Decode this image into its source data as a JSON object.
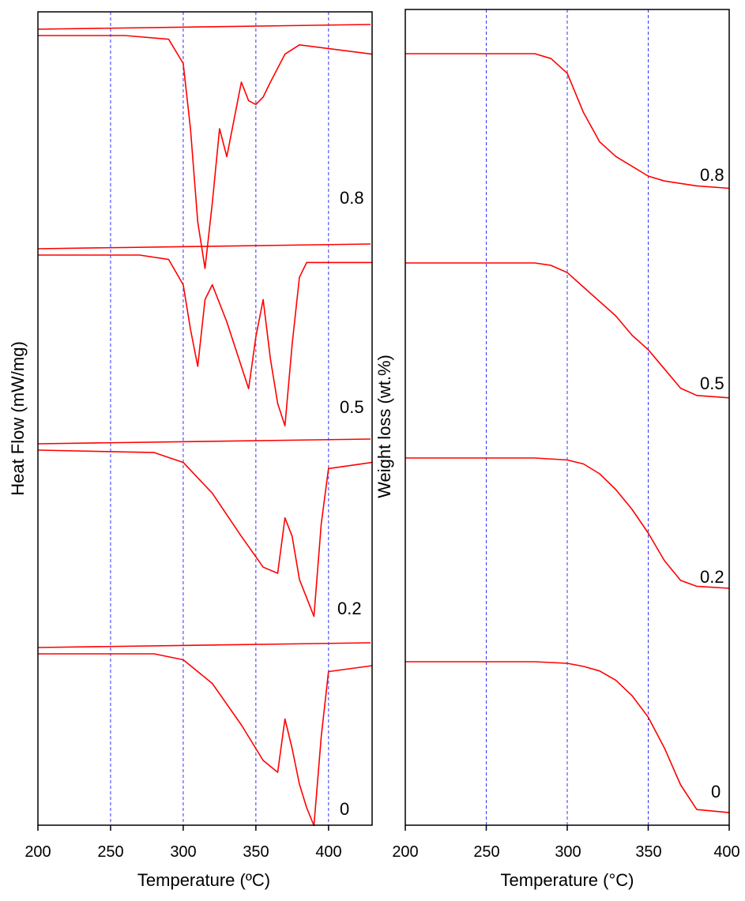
{
  "colors": {
    "curve": "#ff0000",
    "grid": "#3333ff",
    "axis": "#000000",
    "background": "#ffffff"
  },
  "chart_data": [
    {
      "type": "line",
      "title": "",
      "xlabel": "Temperature (ºC)",
      "ylabel": "Heat Flow (mW/mg)",
      "xlim": [
        200,
        430
      ],
      "xticks": [
        "200",
        "250",
        "300",
        "350",
        "400"
      ],
      "grid": {
        "vertical_at": [
          250,
          300,
          350,
          400
        ],
        "style": "dashed"
      },
      "ytick_labels": false,
      "series": [
        {
          "name": "0.8",
          "x": [
            200,
            260,
            290,
            300,
            305,
            310,
            315,
            320,
            325,
            330,
            335,
            340,
            345,
            350,
            355,
            360,
            370,
            380,
            430
          ],
          "y": [
            0,
            0,
            -0.02,
            -0.15,
            -0.5,
            -1.0,
            -1.25,
            -0.9,
            -0.5,
            -0.65,
            -0.45,
            -0.25,
            -0.35,
            -0.37,
            -0.33,
            -0.25,
            -0.1,
            -0.05,
            -0.1
          ]
        },
        {
          "name": "0.5",
          "x": [
            200,
            270,
            290,
            300,
            305,
            310,
            315,
            320,
            330,
            340,
            345,
            350,
            355,
            360,
            365,
            370,
            375,
            380,
            385,
            430
          ],
          "y": [
            0,
            0,
            -0.03,
            -0.2,
            -0.5,
            -0.75,
            -0.3,
            -0.2,
            -0.45,
            -0.75,
            -0.9,
            -0.55,
            -0.3,
            -0.7,
            -1.0,
            -1.15,
            -0.6,
            -0.15,
            -0.05,
            -0.05
          ]
        },
        {
          "name": "0.2",
          "x": [
            200,
            280,
            300,
            320,
            340,
            355,
            365,
            370,
            375,
            380,
            385,
            390,
            395,
            400,
            430
          ],
          "y": [
            0,
            -0.02,
            -0.1,
            -0.35,
            -0.7,
            -0.95,
            -1.0,
            -0.55,
            -0.7,
            -1.05,
            -1.2,
            -1.35,
            -0.6,
            -0.15,
            -0.1
          ]
        },
        {
          "name": "0",
          "x": [
            200,
            280,
            300,
            320,
            340,
            355,
            365,
            370,
            375,
            380,
            385,
            390,
            395,
            400,
            430
          ],
          "y": [
            0,
            0,
            -0.05,
            -0.25,
            -0.6,
            -0.9,
            -1.0,
            -0.55,
            -0.8,
            -1.1,
            -1.3,
            -1.45,
            -0.7,
            -0.15,
            -0.1
          ]
        }
      ]
    },
    {
      "type": "line",
      "title": "",
      "xlabel": "Temperature (°C)",
      "ylabel": "Weight loss (wt.%)",
      "xlim": [
        200,
        400
      ],
      "xticks": [
        "200",
        "250",
        "300",
        "350",
        "400"
      ],
      "grid": {
        "vertical_at": [
          250,
          300,
          350
        ],
        "style": "dashed"
      },
      "ytick_labels": false,
      "series": [
        {
          "name": "0.8",
          "x": [
            200,
            280,
            290,
            300,
            310,
            320,
            330,
            340,
            350,
            360,
            380,
            400
          ],
          "y": [
            100,
            100,
            99,
            96,
            88,
            82,
            79,
            77,
            75,
            74,
            73,
            72.5
          ]
        },
        {
          "name": "0.5",
          "x": [
            200,
            280,
            290,
            300,
            310,
            320,
            330,
            340,
            350,
            360,
            370,
            380,
            400
          ],
          "y": [
            100,
            100,
            99.5,
            98,
            95,
            92,
            89,
            85,
            82,
            78,
            74,
            72.5,
            72
          ]
        },
        {
          "name": "0.2",
          "x": [
            200,
            280,
            300,
            310,
            320,
            330,
            340,
            350,
            360,
            370,
            380,
            400
          ],
          "y": [
            100,
            100,
            99.5,
            98.5,
            96,
            92,
            87,
            81,
            74,
            69,
            67.5,
            67
          ]
        },
        {
          "name": "0",
          "x": [
            200,
            280,
            300,
            310,
            320,
            330,
            340,
            350,
            360,
            370,
            380,
            400
          ],
          "y": [
            100,
            100,
            99.5,
            98.5,
            97,
            94,
            89,
            82,
            72,
            60,
            52,
            51
          ]
        }
      ]
    }
  ]
}
